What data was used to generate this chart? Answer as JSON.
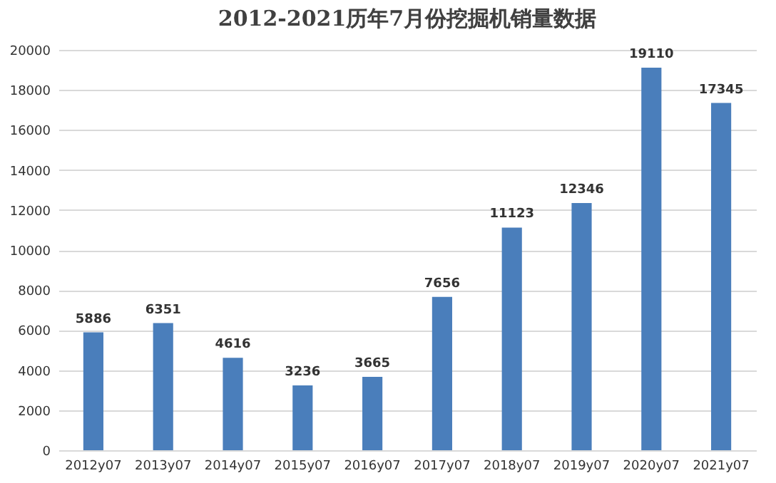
{
  "chart_data": {
    "type": "bar",
    "title": "2012-2021历年7月份挖掘机销量数据",
    "categories": [
      "2012y07",
      "2013y07",
      "2014y07",
      "2015y07",
      "2016y07",
      "2017y07",
      "2018y07",
      "2019y07",
      "2020y07",
      "2021y07"
    ],
    "values": [
      5886,
      6351,
      4616,
      3236,
      3665,
      7656,
      11123,
      12346,
      19110,
      17345
    ],
    "color": "#4a7ebb",
    "ylim": [
      0,
      20000
    ],
    "yticks": [
      0,
      2000,
      4000,
      6000,
      8000,
      10000,
      12000,
      14000,
      16000,
      18000,
      20000
    ],
    "grid": "y",
    "data_labels": true
  }
}
